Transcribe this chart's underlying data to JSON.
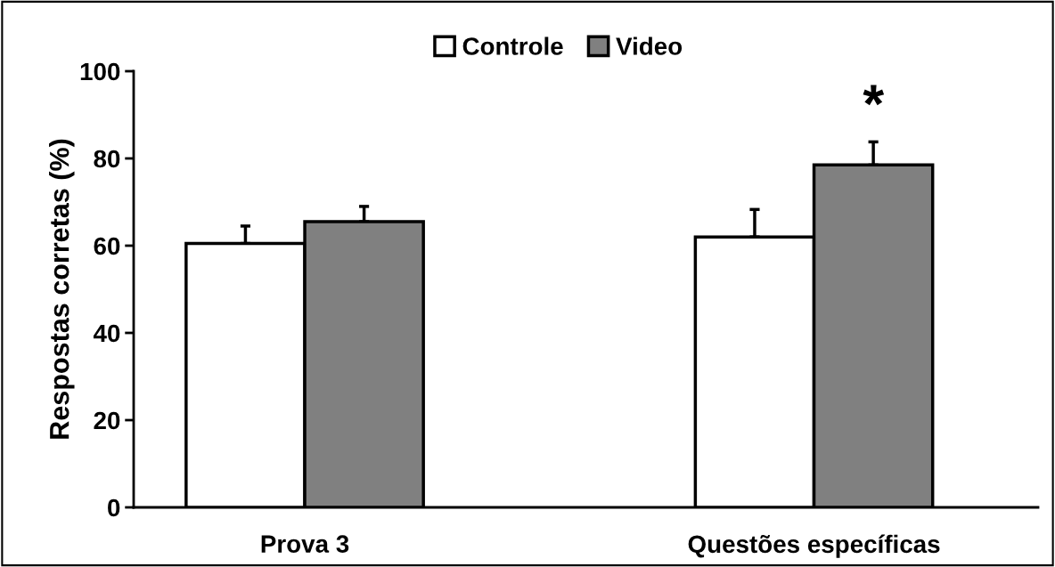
{
  "chart_data": {
    "type": "bar",
    "ylabel": "Respostas corretas (%)",
    "categories": [
      "Prova 3",
      "Questões específicas"
    ],
    "series": [
      {
        "name": "Controle",
        "color": "#ffffff",
        "values": [
          60.5,
          62
        ],
        "errors": [
          [
            60.5,
            64.5
          ],
          [
            62,
            68.3
          ]
        ]
      },
      {
        "name": "Video",
        "color": "#808080",
        "values": [
          65.5,
          78.5
        ],
        "errors": [
          [
            65.5,
            69
          ],
          [
            78.5,
            83.8
          ]
        ]
      }
    ],
    "ylim": [
      0,
      100
    ],
    "yticks": [
      0,
      20,
      40,
      60,
      80,
      100
    ],
    "annotations": [
      "*"
    ],
    "legend": "top",
    "grid": false
  }
}
